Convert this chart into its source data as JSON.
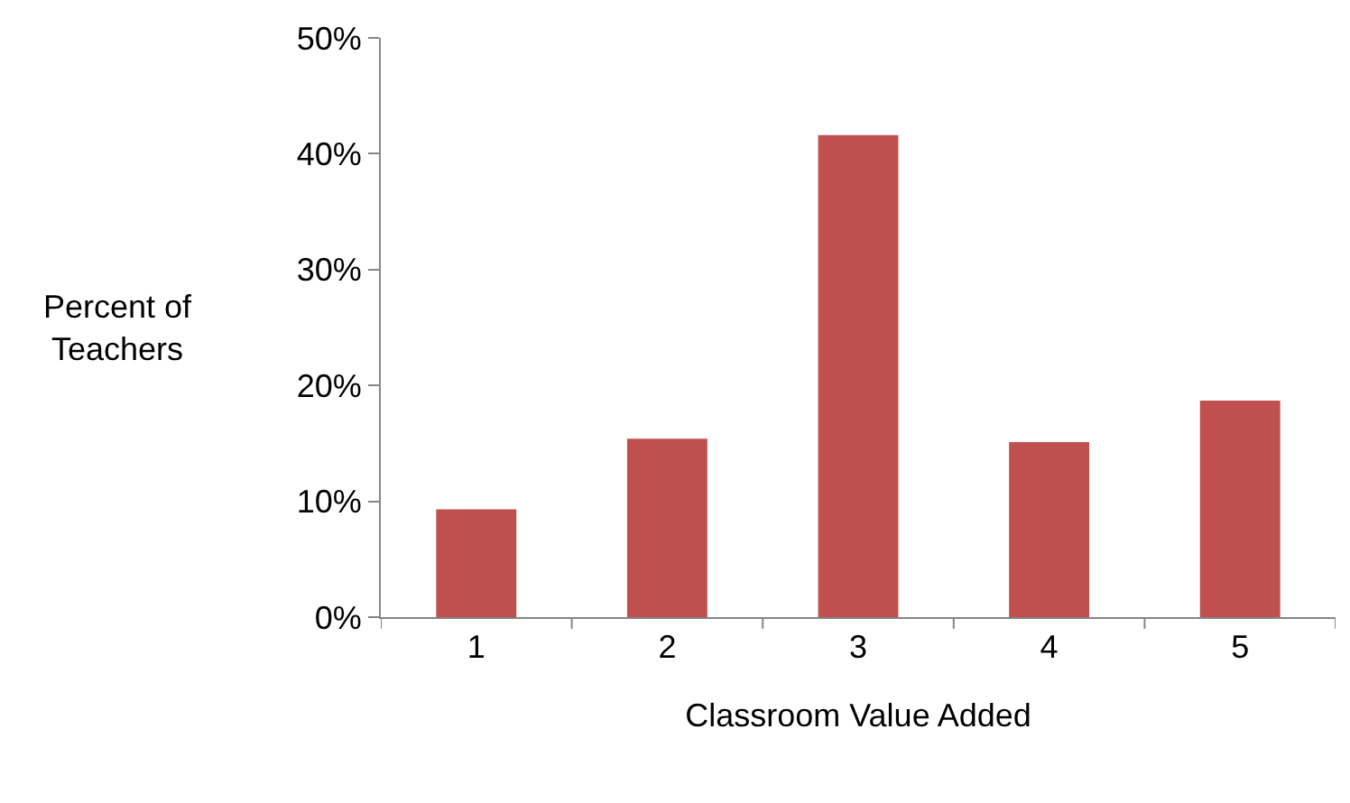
{
  "chart_data": {
    "type": "bar",
    "xlabel": "Classroom Value Added",
    "ylabel": "Percent of\nTeachers",
    "categories": [
      "1",
      "2",
      "3",
      "4",
      "5"
    ],
    "values": [
      9.3,
      15.4,
      41.6,
      15.1,
      18.7
    ],
    "color": "#c0504d",
    "ylim": [
      0,
      50
    ],
    "yticks": [
      {
        "value": 0,
        "label": "0%"
      },
      {
        "value": 10,
        "label": "10%"
      },
      {
        "value": 20,
        "label": "20%"
      },
      {
        "value": 30,
        "label": "30%"
      },
      {
        "value": 40,
        "label": "40%"
      },
      {
        "value": 50,
        "label": "50%"
      }
    ],
    "grid": false,
    "legend": false
  }
}
